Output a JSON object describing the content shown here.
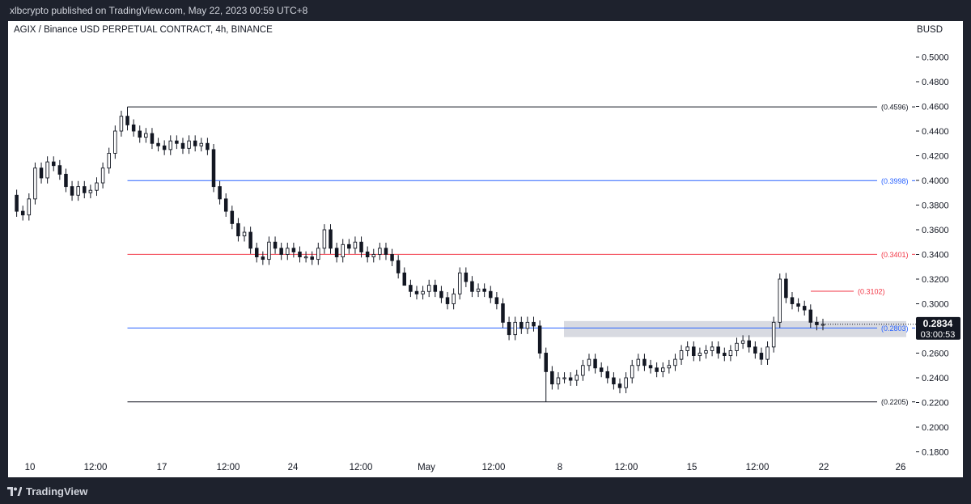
{
  "header": {
    "publish_line": "xlbcrypto published on TradingView.com, May 22, 2023 00:59 UTC+8"
  },
  "footer": {
    "brand": "TradingView",
    "logo_icon": "tradingview-logo-icon"
  },
  "chart_data": {
    "type": "candlestick",
    "title": "AGIX / Binance USD PERPETUAL CONTRACT, 4h, BINANCE",
    "currency": "BUSD",
    "ylim": [
      0.17,
      0.52
    ],
    "y_ticks": [
      "0.5000",
      "0.4800",
      "0.4600",
      "0.4400",
      "0.4200",
      "0.4000",
      "0.3800",
      "0.3600",
      "0.3400",
      "0.3200",
      "0.3000",
      "0.2600",
      "0.2400",
      "0.2200",
      "0.2000",
      "0.1800"
    ],
    "x_ticks": [
      "10",
      "12:00",
      "17",
      "12:00",
      "24",
      "12:00",
      "May",
      "12:00",
      "8",
      "12:00",
      "15",
      "12:00",
      "22",
      "26"
    ],
    "last_price": {
      "value": 0.2834,
      "label": "0.2834",
      "countdown": "03:00:53",
      "color": "#131722"
    },
    "levels": [
      {
        "value": 0.4596,
        "label": "(0.4596)",
        "color": "#131722"
      },
      {
        "value": 0.3998,
        "label": "(0.3998)",
        "color": "#2962ff"
      },
      {
        "value": 0.3401,
        "label": "(0.3401)",
        "color": "#f23645"
      },
      {
        "value": 0.3102,
        "label": "(0.3102)",
        "color": "#f23645"
      },
      {
        "value": 0.2803,
        "label": "(0.2803)",
        "color": "#2962ff"
      },
      {
        "value": 0.2205,
        "label": "(0.2205)",
        "color": "#131722"
      }
    ],
    "zone": {
      "low": 0.273,
      "high": 0.286,
      "color": "#d1d4dc"
    },
    "path": [
      0.388,
      0.375,
      0.372,
      0.385,
      0.41,
      0.402,
      0.415,
      0.412,
      0.405,
      0.395,
      0.388,
      0.395,
      0.39,
      0.392,
      0.398,
      0.41,
      0.422,
      0.44,
      0.452,
      0.445,
      0.44,
      0.435,
      0.438,
      0.43,
      0.428,
      0.425,
      0.432,
      0.43,
      0.426,
      0.432,
      0.428,
      0.43,
      0.425,
      0.395,
      0.385,
      0.375,
      0.365,
      0.355,
      0.358,
      0.345,
      0.338,
      0.336,
      0.35,
      0.345,
      0.34,
      0.345,
      0.342,
      0.338,
      0.338,
      0.336,
      0.345,
      0.36,
      0.345,
      0.338,
      0.348,
      0.345,
      0.35,
      0.342,
      0.338,
      0.34,
      0.345,
      0.34,
      0.335,
      0.325,
      0.315,
      0.31,
      0.308,
      0.31,
      0.315,
      0.31,
      0.305,
      0.3,
      0.308,
      0.325,
      0.318,
      0.31,
      0.312,
      0.31,
      0.305,
      0.3,
      0.285,
      0.275,
      0.285,
      0.28,
      0.285,
      0.282,
      0.26,
      0.245,
      0.235,
      0.24,
      0.24,
      0.238,
      0.242,
      0.25,
      0.255,
      0.248,
      0.245,
      0.24,
      0.235,
      0.232,
      0.24,
      0.25,
      0.255,
      0.25,
      0.248,
      0.245,
      0.248,
      0.25,
      0.255,
      0.262,
      0.265,
      0.258,
      0.26,
      0.262,
      0.265,
      0.26,
      0.258,
      0.262,
      0.268,
      0.27,
      0.265,
      0.26,
      0.255,
      0.265,
      0.285,
      0.32,
      0.305,
      0.3,
      0.298,
      0.295,
      0.285,
      0.283,
      0.2834
    ],
    "spikes": [
      {
        "bar": 19,
        "high": 0.4596
      },
      {
        "bar": 64,
        "low": 0.322
      },
      {
        "bar": 87,
        "low": 0.2205
      },
      {
        "bar": 126,
        "high": 0.325
      }
    ]
  }
}
